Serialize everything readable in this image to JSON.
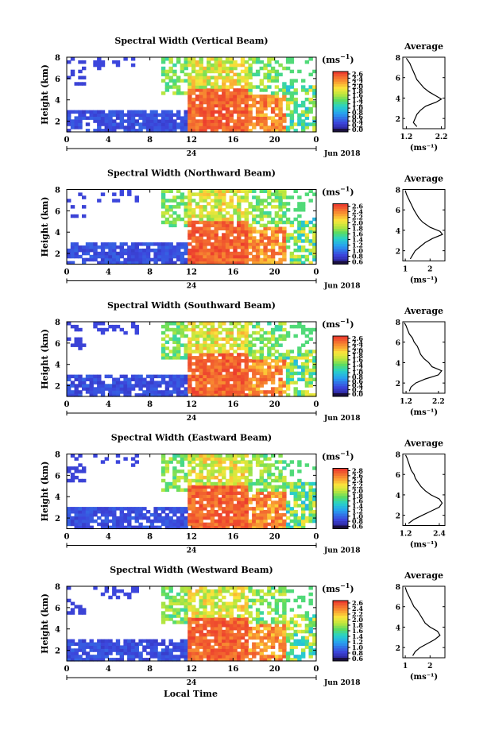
{
  "figure": {
    "x_axis_title": "Local Time",
    "height_label": "Height (km)",
    "unit_label": "(ms",
    "unit_exp": "−1",
    "average_title": "Average",
    "date_label": "Jun 2018",
    "day_label": "24"
  },
  "chart_data": [
    {
      "type": "heatmap",
      "title": "Spectral Width (Vertical Beam)",
      "ylabel": "Height (km)",
      "x_ticks": [
        "0",
        "4",
        "8",
        "12",
        "16",
        "20",
        "0"
      ],
      "y_ticks": [
        "8",
        "6",
        "4",
        "2"
      ],
      "xlim": [
        0,
        24
      ],
      "ylim": [
        1,
        8
      ],
      "colorbar": {
        "ticks": [
          "2.6",
          "2.4",
          "2.2",
          "2.0",
          "1.8",
          "1.6",
          "1.4",
          "1.2",
          "1.0",
          "0.8",
          "0.6",
          "0.4",
          "0.2",
          "0.0"
        ],
        "range": [
          0,
          2.6
        ]
      },
      "average_profile": {
        "xlabel": "(ms⁻¹)",
        "x_ticks": [
          "1.2",
          "2.2"
        ],
        "xlim": [
          1.1,
          2.3
        ],
        "ylim": [
          1,
          8
        ],
        "points": [
          [
            1.5,
            1.2
          ],
          [
            1.4,
            1.6
          ],
          [
            1.45,
            2.0
          ],
          [
            1.5,
            2.4
          ],
          [
            1.6,
            2.8
          ],
          [
            1.75,
            3.2
          ],
          [
            2.05,
            3.6
          ],
          [
            2.2,
            3.9
          ],
          [
            2.05,
            4.2
          ],
          [
            1.85,
            4.6
          ],
          [
            1.7,
            5.0
          ],
          [
            1.6,
            5.4
          ],
          [
            1.5,
            5.8
          ],
          [
            1.45,
            6.2
          ],
          [
            1.4,
            6.6
          ],
          [
            1.35,
            7.0
          ],
          [
            1.3,
            7.4
          ],
          [
            1.2,
            7.9
          ]
        ]
      }
    },
    {
      "type": "heatmap",
      "title": "Spectral Width (Northward Beam)",
      "ylabel": "Height (km)",
      "x_ticks": [
        "0",
        "4",
        "8",
        "12",
        "16",
        "20",
        "0"
      ],
      "y_ticks": [
        "8",
        "6",
        "4",
        "2"
      ],
      "xlim": [
        0,
        24
      ],
      "ylim": [
        1,
        8
      ],
      "colorbar": {
        "ticks": [
          "2.6",
          "2.4",
          "2.2",
          "2.0",
          "1.8",
          "1.6",
          "1.4",
          "1.2",
          "1.0",
          "0.8",
          "0.6"
        ],
        "range": [
          0.6,
          2.6
        ]
      },
      "average_profile": {
        "xlabel": "(ms⁻¹)",
        "x_ticks": [
          "1",
          "2"
        ],
        "xlim": [
          0.9,
          2.6
        ],
        "ylim": [
          1,
          8
        ],
        "points": [
          [
            1.2,
            1.2
          ],
          [
            1.3,
            1.6
          ],
          [
            1.4,
            2.0
          ],
          [
            1.6,
            2.4
          ],
          [
            1.8,
            2.8
          ],
          [
            2.1,
            3.2
          ],
          [
            2.5,
            3.6
          ],
          [
            2.4,
            3.9
          ],
          [
            2.0,
            4.3
          ],
          [
            1.7,
            4.8
          ],
          [
            1.55,
            5.2
          ],
          [
            1.45,
            5.6
          ],
          [
            1.35,
            6.0
          ],
          [
            1.25,
            6.5
          ],
          [
            1.15,
            7.0
          ],
          [
            1.05,
            7.5
          ],
          [
            1.0,
            7.9
          ]
        ]
      }
    },
    {
      "type": "heatmap",
      "title": "Spectral Width (Southward Beam)",
      "ylabel": "Height (km)",
      "x_ticks": [
        "0",
        "4",
        "8",
        "12",
        "16",
        "20",
        "0"
      ],
      "y_ticks": [
        "8",
        "6",
        "4",
        "2"
      ],
      "xlim": [
        0,
        24
      ],
      "ylim": [
        1,
        8
      ],
      "colorbar": {
        "ticks": [
          "2.6",
          "2.4",
          "2.2",
          "2.0",
          "1.8",
          "1.6",
          "1.4",
          "1.2",
          "1.0",
          "0.8",
          "0.6",
          "0.4",
          "0.2",
          "0.0"
        ],
        "range": [
          0,
          2.6
        ]
      },
      "average_profile": {
        "xlabel": "(ms⁻¹)",
        "x_ticks": [
          "1.2",
          "2.2"
        ],
        "xlim": [
          1.1,
          2.4
        ],
        "ylim": [
          1,
          8
        ],
        "points": [
          [
            1.3,
            1.2
          ],
          [
            1.35,
            1.6
          ],
          [
            1.5,
            2.0
          ],
          [
            1.8,
            2.4
          ],
          [
            2.2,
            2.8
          ],
          [
            2.3,
            3.2
          ],
          [
            2.0,
            3.6
          ],
          [
            1.9,
            4.0
          ],
          [
            1.75,
            4.4
          ],
          [
            1.65,
            4.8
          ],
          [
            1.6,
            5.2
          ],
          [
            1.55,
            5.6
          ],
          [
            1.45,
            6.0
          ],
          [
            1.4,
            6.4
          ],
          [
            1.3,
            6.8
          ],
          [
            1.25,
            7.2
          ],
          [
            1.2,
            7.6
          ],
          [
            1.15,
            7.9
          ]
        ]
      }
    },
    {
      "type": "heatmap",
      "title": "Spectral Width (Eastward Beam)",
      "ylabel": "Height (km)",
      "x_ticks": [
        "0",
        "4",
        "8",
        "12",
        "16",
        "20",
        "0"
      ],
      "y_ticks": [
        "8",
        "6",
        "4",
        "2"
      ],
      "xlim": [
        0,
        24
      ],
      "ylim": [
        1,
        8
      ],
      "colorbar": {
        "ticks": [
          "2.8",
          "2.6",
          "2.4",
          "2.2",
          "2.0",
          "1.8",
          "1.6",
          "1.4",
          "1.2",
          "1.0",
          "0.8",
          "0.6"
        ],
        "range": [
          0.6,
          2.8
        ]
      },
      "average_profile": {
        "xlabel": "(ms⁻¹)",
        "x_ticks": [
          "1.2",
          "2.4"
        ],
        "xlim": [
          1.1,
          2.6
        ],
        "ylim": [
          1,
          8
        ],
        "points": [
          [
            1.3,
            1.2
          ],
          [
            1.5,
            1.6
          ],
          [
            1.8,
            2.0
          ],
          [
            2.1,
            2.4
          ],
          [
            2.4,
            2.8
          ],
          [
            2.5,
            3.2
          ],
          [
            2.4,
            3.6
          ],
          [
            2.1,
            4.0
          ],
          [
            1.9,
            4.4
          ],
          [
            1.75,
            4.8
          ],
          [
            1.65,
            5.2
          ],
          [
            1.55,
            5.6
          ],
          [
            1.5,
            6.0
          ],
          [
            1.4,
            6.4
          ],
          [
            1.35,
            6.8
          ],
          [
            1.3,
            7.2
          ],
          [
            1.25,
            7.6
          ],
          [
            1.2,
            7.9
          ]
        ]
      }
    },
    {
      "type": "heatmap",
      "title": "Spectral Width (Westward Beam)",
      "ylabel": "Height (km)",
      "x_ticks": [
        "0",
        "4",
        "8",
        "12",
        "16",
        "20",
        "0"
      ],
      "y_ticks": [
        "8",
        "6",
        "4",
        "2"
      ],
      "xlim": [
        0,
        24
      ],
      "ylim": [
        1,
        8
      ],
      "colorbar": {
        "ticks": [
          "2.6",
          "2.4",
          "2.2",
          "2.0",
          "1.8",
          "1.6",
          "1.4",
          "1.2",
          "1.0",
          "0.8",
          "0.6"
        ],
        "range": [
          0.6,
          2.6
        ]
      },
      "average_profile": {
        "xlabel": "(ms⁻¹)",
        "x_ticks": [
          "1",
          "2"
        ],
        "xlim": [
          0.9,
          2.6
        ],
        "ylim": [
          1,
          8
        ],
        "points": [
          [
            1.3,
            1.2
          ],
          [
            1.4,
            1.6
          ],
          [
            1.6,
            2.0
          ],
          [
            1.9,
            2.4
          ],
          [
            2.2,
            2.8
          ],
          [
            2.4,
            3.2
          ],
          [
            2.3,
            3.6
          ],
          [
            2.0,
            4.0
          ],
          [
            1.8,
            4.4
          ],
          [
            1.7,
            4.8
          ],
          [
            1.6,
            5.2
          ],
          [
            1.5,
            5.6
          ],
          [
            1.35,
            6.0
          ],
          [
            1.25,
            6.5
          ],
          [
            1.15,
            7.0
          ],
          [
            1.05,
            7.5
          ],
          [
            1.0,
            7.9
          ]
        ]
      }
    }
  ]
}
